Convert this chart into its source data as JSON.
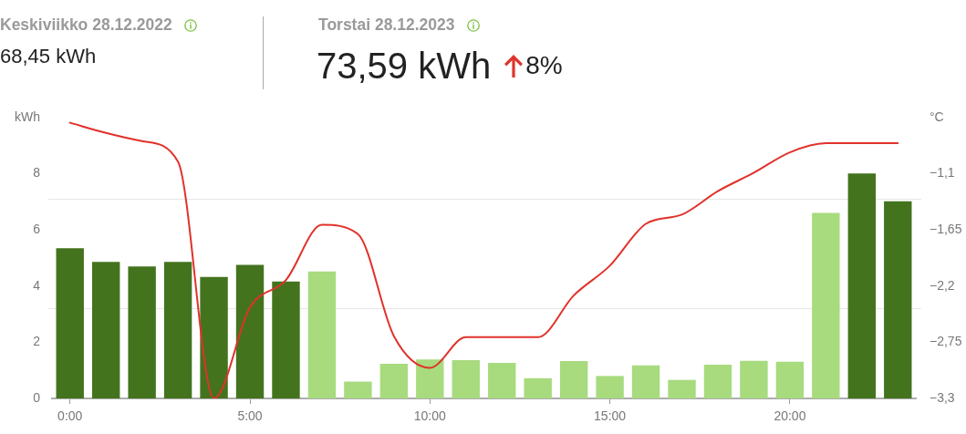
{
  "chart_data": {
    "type": "bar",
    "annotations": [
      "Keskiviikko 28.12.2022",
      "68,45 kWh",
      "Torstai 28.12.2023",
      "73,59 kWh",
      "8%"
    ],
    "categories": [
      "0:00",
      null,
      null,
      null,
      null,
      "5:00",
      null,
      null,
      null,
      null,
      "10:00",
      null,
      null,
      null,
      null,
      "15:00",
      null,
      null,
      null,
      null,
      "20:00",
      null,
      null,
      null
    ],
    "series": [
      {
        "values": [
          5.35,
          4.86,
          4.7,
          4.86,
          4.33,
          4.76,
          4.16,
          4.52,
          0.6,
          1.23,
          1.39,
          1.36,
          1.27,
          0.72,
          1.33,
          0.8,
          1.18,
          0.66,
          1.2,
          1.34,
          1.31,
          6.61,
          8.01,
          7.02
        ],
        "colors": [
          "#44731e",
          "#44731e",
          "#44731e",
          "#44731e",
          "#44731e",
          "#44731e",
          "#44731e",
          "#a8da7e",
          "#a8da7e",
          "#a8da7e",
          "#a8da7e",
          "#a8da7e",
          "#a8da7e",
          "#a8da7e",
          "#a8da7e",
          "#a8da7e",
          "#a8da7e",
          "#a8da7e",
          "#a8da7e",
          "#a8da7e",
          "#a8da7e",
          "#a8da7e",
          "#44731e",
          "#44731e"
        ]
      },
      {
        "type": "line",
        "axis": "y2",
        "color": "#e0322b",
        "values": [
          -0.6,
          -0.7,
          -0.78,
          -0.98,
          -3.3,
          -2.41,
          -2.14,
          -1.6,
          -1.69,
          -2.69,
          -3.0,
          -2.7,
          -2.7,
          -2.7,
          -2.29,
          -2.0,
          -1.59,
          -1.5,
          -1.27,
          -1.09,
          -0.89,
          -0.8,
          -0.8,
          -0.8
        ]
      }
    ],
    "ylim": [
      0,
      10
    ],
    "yticks": [
      0,
      2,
      4,
      6,
      8,
      {
        "value": 10,
        "label": "kWh"
      }
    ],
    "y2lim": [
      -3.3,
      -0.55
    ],
    "y2ticks": [
      {
        "value": -3.3,
        "label": "−3,3"
      },
      {
        "value": -2.75,
        "label": "−2,75"
      },
      {
        "value": -2.2,
        "label": "−2,2"
      },
      {
        "value": -1.65,
        "label": "−1,65"
      },
      {
        "value": -1.1,
        "label": "−1,1"
      },
      {
        "value": -0.55,
        "label": "°C"
      }
    ],
    "ref_lines": [
      {
        "axis": "y",
        "value": 3.2,
        "color": "#e6e6e6"
      },
      {
        "axis": "y",
        "value": 7.1,
        "color": "#e6e6e6"
      }
    ],
    "marker": "none"
  }
}
